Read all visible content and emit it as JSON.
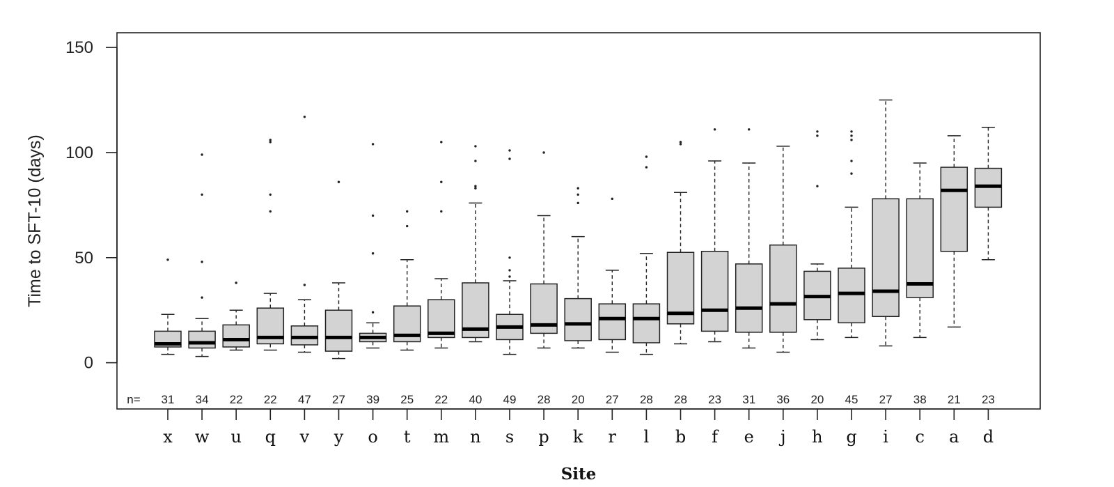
{
  "chart_data": {
    "type": "box",
    "xlabel": "Site",
    "ylabel": "Time to SFT-10 (days)",
    "ylim": [
      -22,
      157
    ],
    "yticks": [
      0,
      50,
      100,
      150
    ],
    "n_prefix": "n=",
    "grid": false,
    "box_fill": "#d3d3d3",
    "categories": [
      "x",
      "w",
      "u",
      "q",
      "v",
      "y",
      "o",
      "t",
      "m",
      "n",
      "s",
      "p",
      "k",
      "r",
      "l",
      "b",
      "f",
      "e",
      "j",
      "h",
      "g",
      "i",
      "c",
      "a",
      "d"
    ],
    "n": [
      "31",
      "34",
      "22",
      "22",
      "47",
      "27",
      "39",
      "25",
      "22",
      "40",
      "49",
      "28",
      "20",
      "27",
      "28",
      "28",
      "23",
      "31",
      "36",
      "20",
      "45",
      "27",
      "38",
      "21",
      "23"
    ],
    "boxes": [
      {
        "whisker_low": 4,
        "q1": 7.5,
        "median": 9,
        "q3": 15,
        "whisker_high": 23,
        "outliers": [
          49
        ]
      },
      {
        "whisker_low": 3,
        "q1": 7,
        "median": 9.5,
        "q3": 15,
        "whisker_high": 21,
        "outliers": [
          31,
          48,
          80,
          99
        ]
      },
      {
        "whisker_low": 6,
        "q1": 7.5,
        "median": 11,
        "q3": 18,
        "whisker_high": 25,
        "outliers": [
          38
        ]
      },
      {
        "whisker_low": 6,
        "q1": 9,
        "median": 12,
        "q3": 26,
        "whisker_high": 33,
        "outliers": [
          72,
          80,
          105,
          106
        ]
      },
      {
        "whisker_low": 5,
        "q1": 8.5,
        "median": 12,
        "q3": 17.5,
        "whisker_high": 30,
        "outliers": [
          37,
          117
        ]
      },
      {
        "whisker_low": 2,
        "q1": 5.5,
        "median": 12,
        "q3": 25,
        "whisker_high": 38,
        "outliers": [
          86
        ]
      },
      {
        "whisker_low": 7,
        "q1": 10,
        "median": 12,
        "q3": 14,
        "whisker_high": 19,
        "outliers": [
          24,
          52,
          70,
          104
        ]
      },
      {
        "whisker_low": 6,
        "q1": 10,
        "median": 13,
        "q3": 27,
        "whisker_high": 49,
        "outliers": [
          65,
          72
        ]
      },
      {
        "whisker_low": 7,
        "q1": 12,
        "median": 14,
        "q3": 30,
        "whisker_high": 40,
        "outliers": [
          72,
          86,
          105
        ]
      },
      {
        "whisker_low": 10,
        "q1": 12,
        "median": 16,
        "q3": 38,
        "whisker_high": 76,
        "outliers": [
          83,
          84,
          96,
          103
        ]
      },
      {
        "whisker_low": 4,
        "q1": 11,
        "median": 17,
        "q3": 23,
        "whisker_high": 39,
        "outliers": [
          41,
          44,
          50,
          97,
          101
        ]
      },
      {
        "whisker_low": 7,
        "q1": 14,
        "median": 18,
        "q3": 37.5,
        "whisker_high": 70,
        "outliers": [
          100
        ]
      },
      {
        "whisker_low": 7,
        "q1": 10.5,
        "median": 18.5,
        "q3": 30.5,
        "whisker_high": 60,
        "outliers": [
          76,
          80,
          83
        ]
      },
      {
        "whisker_low": 5,
        "q1": 11,
        "median": 21,
        "q3": 28,
        "whisker_high": 44,
        "outliers": [
          78
        ]
      },
      {
        "whisker_low": 4,
        "q1": 9.5,
        "median": 21,
        "q3": 28,
        "whisker_high": 52,
        "outliers": [
          93,
          98
        ]
      },
      {
        "whisker_low": 9,
        "q1": 18.5,
        "median": 23.5,
        "q3": 52.5,
        "whisker_high": 81,
        "outliers": [
          104,
          105
        ]
      },
      {
        "whisker_low": 10,
        "q1": 15,
        "median": 25,
        "q3": 53,
        "whisker_high": 96,
        "outliers": [
          111
        ]
      },
      {
        "whisker_low": 7,
        "q1": 14.5,
        "median": 26,
        "q3": 47,
        "whisker_high": 95,
        "outliers": [
          111
        ]
      },
      {
        "whisker_low": 5,
        "q1": 14.5,
        "median": 28,
        "q3": 56,
        "whisker_high": 103,
        "outliers": []
      },
      {
        "whisker_low": 11,
        "q1": 20.5,
        "median": 31.5,
        "q3": 43.5,
        "whisker_high": 47,
        "outliers": [
          84,
          108,
          110
        ]
      },
      {
        "whisker_low": 12,
        "q1": 19,
        "median": 33,
        "q3": 45,
        "whisker_high": 74,
        "outliers": [
          90,
          96,
          106,
          108,
          110
        ]
      },
      {
        "whisker_low": 8,
        "q1": 22,
        "median": 34,
        "q3": 78,
        "whisker_high": 125,
        "outliers": []
      },
      {
        "whisker_low": 12,
        "q1": 31,
        "median": 37.5,
        "q3": 78,
        "whisker_high": 95,
        "outliers": []
      },
      {
        "whisker_low": 17,
        "q1": 53,
        "median": 82,
        "q3": 93,
        "whisker_high": 108,
        "outliers": []
      },
      {
        "whisker_low": 49,
        "q1": 74,
        "median": 84,
        "q3": 92.5,
        "whisker_high": 112,
        "outliers": []
      }
    ]
  }
}
